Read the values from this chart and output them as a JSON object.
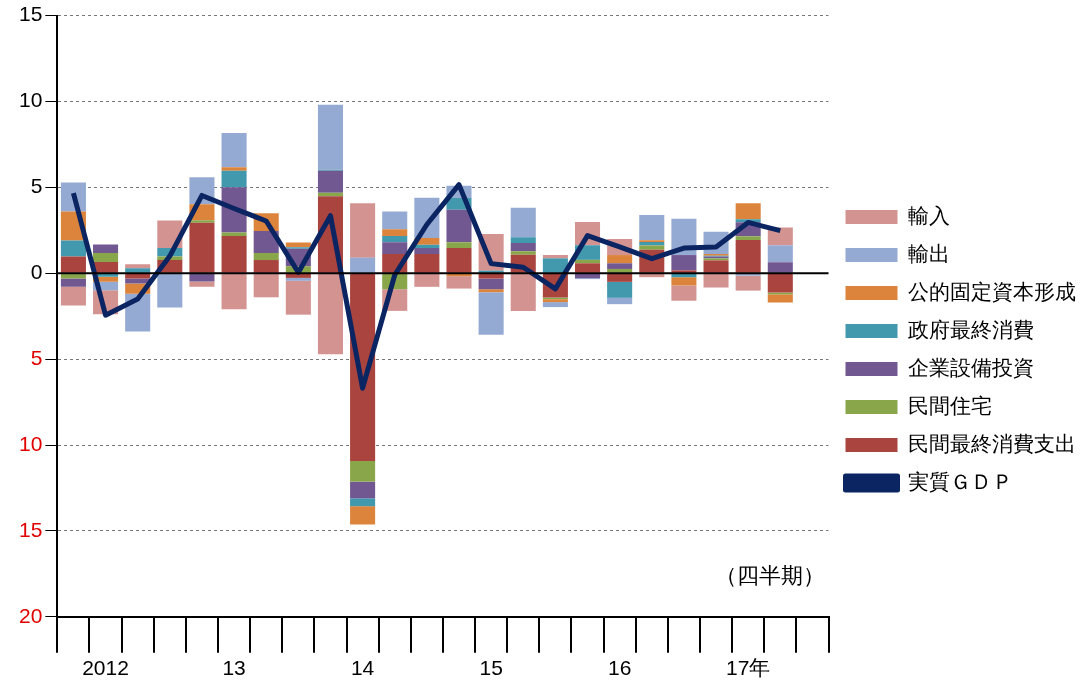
{
  "chart_data": {
    "type": "bar",
    "stacked": true,
    "categories": [
      null,
      "2012",
      null,
      null,
      null,
      "13",
      null,
      null,
      null,
      "14",
      null,
      null,
      null,
      "15",
      null,
      null,
      null,
      "16",
      null,
      null,
      null,
      "17年",
      null,
      null
    ],
    "ylim": [
      -20,
      15
    ],
    "yticks": [
      {
        "value": -20,
        "label": "20"
      },
      {
        "value": -15,
        "label": "15"
      },
      {
        "value": -10,
        "label": "10"
      },
      {
        "value": -5,
        "label": "5"
      },
      0,
      5,
      10,
      15
    ],
    "grid": "y",
    "legend": "right",
    "annotations": [
      "（四半期）"
    ],
    "series": [
      {
        "name": "民間最終消費支出",
        "color": "#a9443f",
        "values": [
          0.97,
          0.66,
          -0.3,
          0.77,
          2.94,
          2.17,
          0.77,
          -0.27,
          4.49,
          -10.93,
          1.12,
          1.12,
          1.47,
          -0.31,
          1.08,
          -1.41,
          0.58,
          -0.5,
          1.37,
          0.17,
          0.75,
          1.93,
          -1.12,
          null
        ]
      },
      {
        "name": "民間住宅",
        "color": "#8aa64b",
        "values": [
          -0.3,
          0.52,
          null,
          0.2,
          0.15,
          0.2,
          0.41,
          0.41,
          0.2,
          -1.2,
          -0.93,
          0,
          0.33,
          null,
          0.2,
          -0.1,
          0.2,
          0.25,
          0.25,
          0,
          0.12,
          0.23,
          -0.1,
          null
        ]
      },
      {
        "name": "企業設備投資",
        "color": "#725891",
        "values": [
          -0.48,
          0.5,
          -0.29,
          0,
          -0.48,
          2.63,
          1.28,
          1.01,
          1.28,
          -0.97,
          0.68,
          0.35,
          1.9,
          -0.62,
          0.48,
          null,
          -0.29,
          0.33,
          0,
          0.89,
          0.1,
          0.81,
          0.64,
          null
        ]
      },
      {
        "name": "政府最終消費",
        "color": "#4298ad",
        "values": [
          0.93,
          -0.2,
          0.29,
          0.5,
          0,
          0.97,
          0,
          0.1,
          0.05,
          -0.46,
          0.37,
          0.19,
          0.68,
          0.15,
          0.33,
          0.87,
          0.85,
          -0.93,
          0.2,
          -0.23,
          0.05,
          0.17,
          0,
          null
        ]
      },
      {
        "name": "公的固定資本形成",
        "color": "#dc843c",
        "values": [
          1.7,
          -0.29,
          -0.6,
          0,
          0.93,
          0.2,
          1.04,
          0.27,
          0,
          -1.06,
          0.39,
          0.39,
          -0.17,
          -0.17,
          0,
          -0.17,
          0,
          0.48,
          0.1,
          -0.48,
          0.1,
          0.93,
          -0.48,
          null
        ]
      },
      {
        "name": "輸出",
        "color": "#94aad2",
        "values": [
          1.68,
          -0.5,
          -2.2,
          -2.0,
          1.57,
          2.0,
          0,
          -0.17,
          3.79,
          0.91,
          1.04,
          2.34,
          0.72,
          -2.48,
          1.72,
          -0.29,
          -0.05,
          -0.37,
          1.47,
          2.11,
          1.3,
          -0.14,
          0.99,
          null
        ]
      },
      {
        "name": "輸入",
        "color": "#d39391",
        "values": [
          -1.1,
          -1.4,
          0.23,
          1.6,
          -0.31,
          -2.1,
          -1.4,
          -1.97,
          -4.72,
          3.17,
          -1.26,
          -0.79,
          -0.72,
          2.13,
          -2.19,
          0.2,
          1.35,
          0.93,
          -0.23,
          -0.89,
          -0.83,
          -0.87,
          1.04,
          null
        ]
      },
      {
        "name": "実質ＧＤＰ",
        "type": "line",
        "color": "#0b2462",
        "values": [
          4.66,
          -2.44,
          -1.5,
          1.0,
          4.53,
          3.77,
          3.04,
          0.05,
          3.35,
          -6.69,
          -0.1,
          2.84,
          5.16,
          0.56,
          0.35,
          -0.91,
          2.19,
          1.53,
          0.85,
          1.47,
          1.53,
          2.96,
          2.48,
          null
        ]
      }
    ]
  }
}
